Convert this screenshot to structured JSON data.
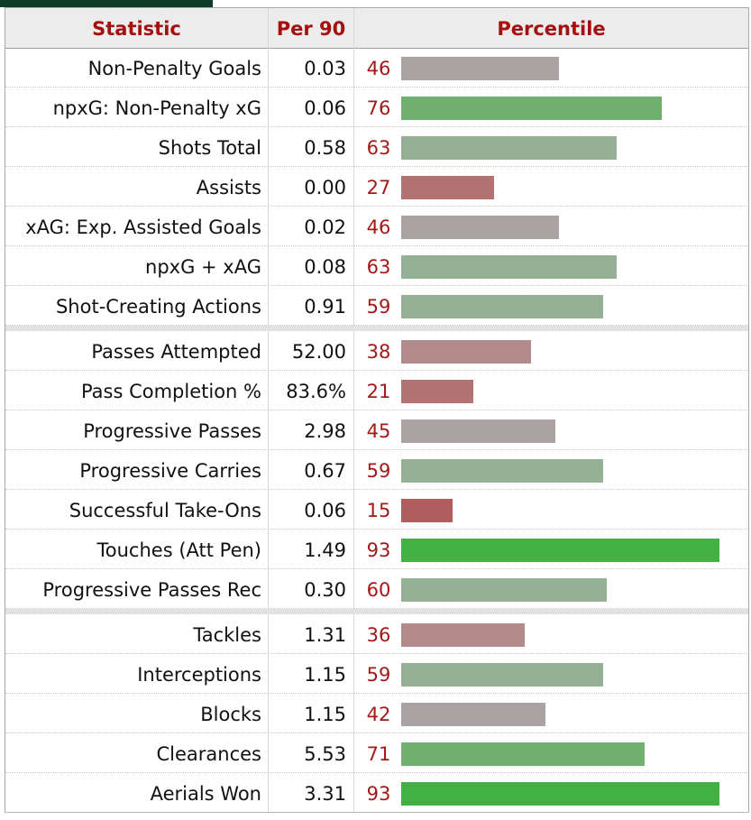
{
  "header": {
    "statistic": "Statistic",
    "per90": "Per 90",
    "percentile": "Percentile"
  },
  "colors": {
    "high": "#42b042",
    "mid_high": "#6fb06f",
    "neutral_high": "#95b195",
    "neutral": "#aba3a3",
    "neutral_low": "#b28a8a",
    "low": "#b37373",
    "very_low": "#b25d5d",
    "header_text": "#a50f0f"
  },
  "chart_data": {
    "type": "bar",
    "x_axis": "Percentile",
    "xlim": [
      0,
      100
    ],
    "groups": [
      {
        "rows": [
          {
            "statistic": "Non-Penalty Goals",
            "per90": "0.03",
            "percentile": 46
          },
          {
            "statistic": "npxG: Non-Penalty xG",
            "per90": "0.06",
            "percentile": 76
          },
          {
            "statistic": "Shots Total",
            "per90": "0.58",
            "percentile": 63
          },
          {
            "statistic": "Assists",
            "per90": "0.00",
            "percentile": 27
          },
          {
            "statistic": "xAG: Exp. Assisted Goals",
            "per90": "0.02",
            "percentile": 46
          },
          {
            "statistic": "npxG + xAG",
            "per90": "0.08",
            "percentile": 63
          },
          {
            "statistic": "Shot-Creating Actions",
            "per90": "0.91",
            "percentile": 59
          }
        ]
      },
      {
        "rows": [
          {
            "statistic": "Passes Attempted",
            "per90": "52.00",
            "percentile": 38
          },
          {
            "statistic": "Pass Completion %",
            "per90": "83.6%",
            "percentile": 21
          },
          {
            "statistic": "Progressive Passes",
            "per90": "2.98",
            "percentile": 45
          },
          {
            "statistic": "Progressive Carries",
            "per90": "0.67",
            "percentile": 59
          },
          {
            "statistic": "Successful Take-Ons",
            "per90": "0.06",
            "percentile": 15
          },
          {
            "statistic": "Touches (Att Pen)",
            "per90": "1.49",
            "percentile": 93
          },
          {
            "statistic": "Progressive Passes Rec",
            "per90": "0.30",
            "percentile": 60
          }
        ]
      },
      {
        "rows": [
          {
            "statistic": "Tackles",
            "per90": "1.31",
            "percentile": 36
          },
          {
            "statistic": "Interceptions",
            "per90": "1.15",
            "percentile": 59
          },
          {
            "statistic": "Blocks",
            "per90": "1.15",
            "percentile": 42
          },
          {
            "statistic": "Clearances",
            "per90": "5.53",
            "percentile": 71
          },
          {
            "statistic": "Aerials Won",
            "per90": "3.31",
            "percentile": 93
          }
        ]
      }
    ]
  }
}
